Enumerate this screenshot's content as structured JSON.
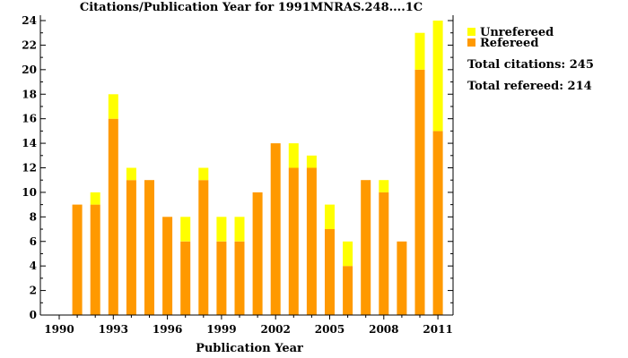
{
  "chart_data": {
    "type": "bar",
    "stacked": true,
    "title": "Citations/Publication Year for 1991MNRAS.248....1C",
    "xlabel": "Publication Year",
    "ylabel": "",
    "xlim": [
      1990,
      2011
    ],
    "ylim": [
      0,
      24
    ],
    "x_ticks": [
      1990,
      1993,
      1996,
      1999,
      2002,
      2005,
      2008,
      2011
    ],
    "y_ticks": [
      0,
      2,
      4,
      6,
      8,
      10,
      12,
      14,
      16,
      18,
      20,
      22,
      24
    ],
    "categories": [
      1991,
      1992,
      1993,
      1994,
      1995,
      1996,
      1997,
      1998,
      1999,
      2000,
      2001,
      2002,
      2003,
      2004,
      2005,
      2006,
      2007,
      2008,
      2009,
      2010,
      2011
    ],
    "series": [
      {
        "name": "Refereed",
        "color": "#ff9900",
        "values": [
          9,
          9,
          16,
          11,
          11,
          8,
          6,
          11,
          6,
          6,
          10,
          14,
          12,
          12,
          7,
          4,
          11,
          10,
          6,
          20,
          15
        ]
      },
      {
        "name": "Unrefereed",
        "color": "#ffff00",
        "values": [
          0,
          1,
          2,
          1,
          0,
          0,
          2,
          1,
          2,
          2,
          0,
          0,
          2,
          1,
          2,
          2,
          0,
          1,
          0,
          3,
          9
        ]
      }
    ],
    "legend": {
      "position": "top-right",
      "entries": [
        "Unrefereed",
        "Refereed"
      ]
    },
    "annotations": {
      "total_citations": "Total citations: 245",
      "total_refereed": "Total refereed: 214"
    },
    "grid": false
  }
}
